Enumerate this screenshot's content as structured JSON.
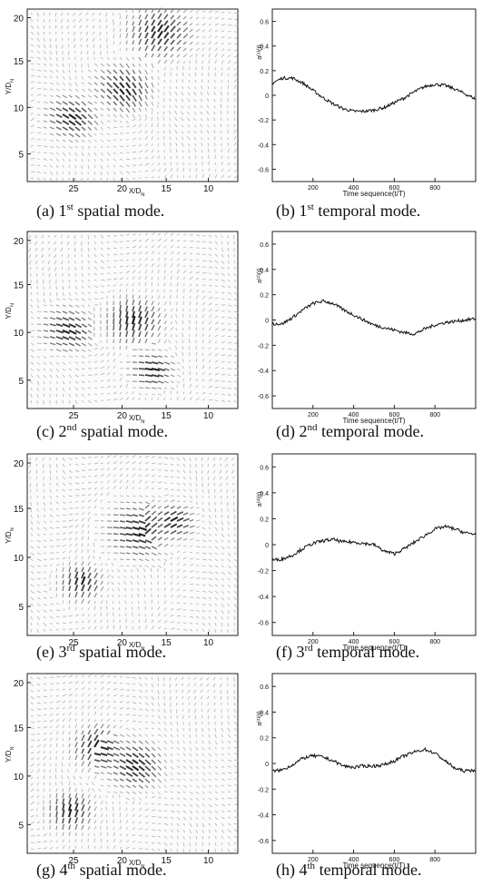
{
  "panels": [
    {
      "spatial": {
        "caption_prefix": "(a) 1",
        "caption_sup": "st",
        "caption_suffix": " spatial mode.",
        "xticks": [
          "25",
          "20",
          "15",
          "10"
        ],
        "yticks": [
          "20",
          "15",
          "10",
          "5"
        ],
        "xlabel": "X/D",
        "xlabel_sub": "N",
        "ylabel": "Y/D",
        "ylabel_sub": "N"
      },
      "temporal": {
        "caption_prefix": "(b) 1",
        "caption_sup": "st",
        "caption_suffix": " temporal mode.",
        "ylabel": "a",
        "ylabel_sup": "(1)",
        "ylabel_suffix": "(t)",
        "xlabel": "Time sequence(t/T)"
      }
    },
    {
      "spatial": {
        "caption_prefix": "(c) 2",
        "caption_sup": "nd",
        "caption_suffix": " spatial mode.",
        "xticks": [
          "25",
          "20",
          "15",
          "10"
        ],
        "yticks": [
          "20",
          "15",
          "10",
          "5"
        ],
        "xlabel": "X/D",
        "xlabel_sub": "N",
        "ylabel": "Y/D",
        "ylabel_sub": "N"
      },
      "temporal": {
        "caption_prefix": "(d) 2",
        "caption_sup": "nd",
        "caption_suffix": " temporal mode.",
        "ylabel": "a",
        "ylabel_sup": "(2)",
        "ylabel_suffix": "(t)",
        "xlabel": "Time sequence(t/T)"
      }
    },
    {
      "spatial": {
        "caption_prefix": "(e) 3",
        "caption_sup": "rd",
        "caption_suffix": " spatial mode.",
        "xticks": [
          "25",
          "20",
          "15",
          "10"
        ],
        "yticks": [
          "20",
          "15",
          "10",
          "5"
        ],
        "xlabel": "X/D",
        "xlabel_sub": "N",
        "ylabel": "Y/D",
        "ylabel_sub": "N"
      },
      "temporal": {
        "caption_prefix": "(f) 3",
        "caption_sup": "rd",
        "caption_suffix": " temporal mode.",
        "ylabel": "a",
        "ylabel_sup": "(3)",
        "ylabel_suffix": "(t)",
        "xlabel": "Time sequence(t/T)"
      }
    },
    {
      "spatial": {
        "caption_prefix": "(g) 4",
        "caption_sup": "th",
        "caption_suffix": " spatial mode.",
        "xticks": [
          "25",
          "20",
          "15",
          "10"
        ],
        "yticks": [
          "20",
          "15",
          "10",
          "5"
        ],
        "xlabel": "X/D",
        "xlabel_sub": "N",
        "ylabel": "Y/D",
        "ylabel_sub": "N"
      },
      "temporal": {
        "caption_prefix": "(h) 4",
        "caption_sup": "th",
        "caption_suffix": " temporal mode.",
        "ylabel": "a",
        "ylabel_sup": "(4)",
        "ylabel_suffix": "(t)",
        "xlabel": "Time sequence(t/T)"
      }
    }
  ],
  "chart_data": [
    {
      "type": "line",
      "title": "",
      "xlabel": "Time sequence(t/T)",
      "ylabel": "a(1)(t)",
      "xlim": [
        0,
        1000
      ],
      "ylim": [
        -0.7,
        0.7
      ],
      "xticks": [
        200,
        400,
        600,
        800
      ],
      "yticks": [
        0.6,
        0.4,
        0.2,
        0,
        -0.2,
        -0.4,
        -0.6
      ],
      "series": [
        {
          "x": [
            0,
            50,
            100,
            150,
            200,
            250,
            300,
            350,
            400,
            450,
            500,
            550,
            600,
            650,
            700,
            750,
            800,
            850,
            900,
            950,
            1000
          ],
          "y": [
            0.1,
            0.14,
            0.14,
            0.1,
            0.04,
            -0.02,
            -0.07,
            -0.11,
            -0.13,
            -0.13,
            -0.12,
            -0.1,
            -0.06,
            -0.02,
            0.03,
            0.07,
            0.09,
            0.08,
            0.05,
            0.01,
            -0.03
          ]
        }
      ]
    },
    {
      "type": "line",
      "title": "",
      "xlabel": "Time sequence(t/T)",
      "ylabel": "a(2)(t)",
      "xlim": [
        0,
        1000
      ],
      "ylim": [
        -0.7,
        0.7
      ],
      "xticks": [
        200,
        400,
        600,
        800
      ],
      "yticks": [
        0.6,
        0.4,
        0.2,
        0,
        -0.2,
        -0.4,
        -0.6
      ],
      "series": [
        {
          "x": [
            0,
            50,
            100,
            150,
            200,
            250,
            300,
            350,
            400,
            450,
            500,
            550,
            600,
            650,
            700,
            750,
            800,
            850,
            900,
            950,
            1000
          ],
          "y": [
            -0.03,
            -0.03,
            0.02,
            0.08,
            0.13,
            0.15,
            0.13,
            0.08,
            0.04,
            0.0,
            -0.04,
            -0.06,
            -0.08,
            -0.1,
            -0.11,
            -0.07,
            -0.04,
            -0.02,
            -0.01,
            0.0,
            0.01
          ]
        }
      ]
    },
    {
      "type": "line",
      "title": "",
      "xlabel": "Time sequence(t/T)",
      "ylabel": "a(3)(t)",
      "xlim": [
        0,
        1000
      ],
      "ylim": [
        -0.7,
        0.7
      ],
      "xticks": [
        200,
        400,
        600,
        800
      ],
      "yticks": [
        0.6,
        0.4,
        0.2,
        0,
        -0.2,
        -0.4,
        -0.6
      ],
      "series": [
        {
          "x": [
            0,
            50,
            100,
            150,
            200,
            250,
            300,
            350,
            400,
            450,
            500,
            550,
            600,
            650,
            700,
            750,
            800,
            850,
            900,
            950,
            1000
          ],
          "y": [
            -0.12,
            -0.11,
            -0.08,
            -0.03,
            0.01,
            0.03,
            0.04,
            0.02,
            0.02,
            0.01,
            0.0,
            -0.05,
            -0.07,
            -0.03,
            0.02,
            0.07,
            0.12,
            0.14,
            0.12,
            0.09,
            0.08
          ]
        }
      ]
    },
    {
      "type": "line",
      "title": "",
      "xlabel": "Time sequence(t/T)",
      "ylabel": "a(4)(t)",
      "xlim": [
        0,
        1000
      ],
      "ylim": [
        -0.7,
        0.7
      ],
      "xticks": [
        200,
        400,
        600,
        800
      ],
      "yticks": [
        0.6,
        0.4,
        0.2,
        0,
        -0.2,
        -0.4,
        -0.6
      ],
      "series": [
        {
          "x": [
            0,
            50,
            100,
            150,
            200,
            250,
            300,
            350,
            400,
            450,
            500,
            550,
            600,
            650,
            700,
            750,
            800,
            850,
            900,
            950,
            1000
          ],
          "y": [
            -0.06,
            -0.05,
            -0.01,
            0.04,
            0.06,
            0.05,
            0.02,
            -0.02,
            -0.03,
            -0.02,
            -0.02,
            -0.01,
            0.02,
            0.06,
            0.09,
            0.11,
            0.08,
            0.02,
            -0.04,
            -0.06,
            -0.05
          ]
        }
      ]
    }
  ]
}
